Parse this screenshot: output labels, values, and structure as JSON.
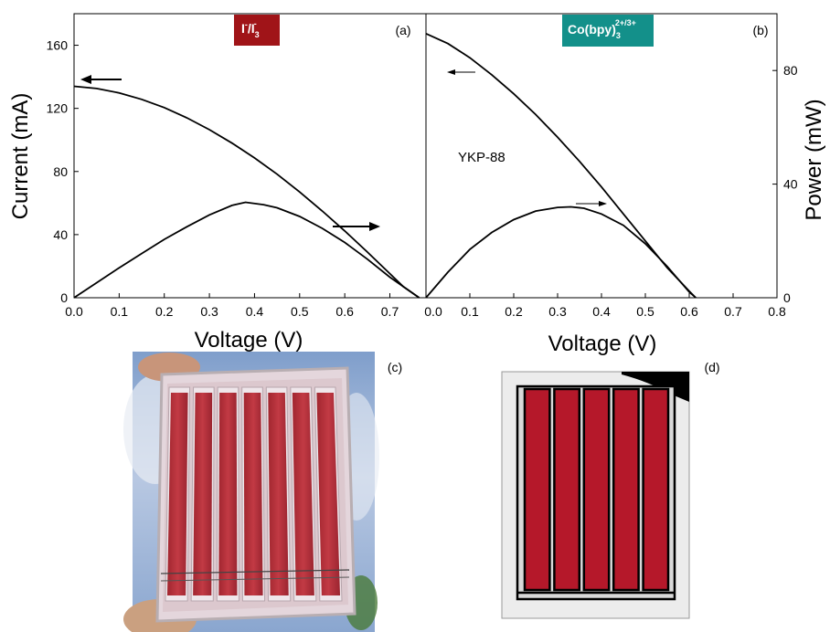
{
  "chart_data": [
    {
      "type": "line",
      "panel_label": "(a)",
      "badge": {
        "main": "I",
        "sup1": "-",
        "mid": "/I",
        "sub": "3",
        "sup2": "-",
        "color": "#a01418"
      },
      "xlabel": "Voltage (V)",
      "ylabel": "Current (mA)",
      "xlim": [
        0.0,
        0.78
      ],
      "ylim": [
        0,
        180
      ],
      "x_ticks": [
        "0.0",
        "0.1",
        "0.2",
        "0.3",
        "0.4",
        "0.5",
        "0.6",
        "0.7"
      ],
      "y_ticks": [
        "0",
        "40",
        "80",
        "120",
        "160"
      ],
      "arrows": [
        "left",
        "right"
      ],
      "series": [
        {
          "axis": "left",
          "x": [
            0.0,
            0.05,
            0.1,
            0.15,
            0.2,
            0.25,
            0.3,
            0.35,
            0.4,
            0.45,
            0.5,
            0.55,
            0.6,
            0.65,
            0.7,
            0.73,
            0.765
          ],
          "values": [
            134,
            132.6,
            129.8,
            125.7,
            120.5,
            114,
            106.5,
            98,
            88.6,
            78.3,
            67,
            55,
            42.3,
            29,
            15.3,
            7,
            0
          ]
        },
        {
          "axis": "left",
          "x": [
            0.0,
            0.05,
            0.1,
            0.15,
            0.2,
            0.25,
            0.3,
            0.35,
            0.38,
            0.42,
            0.45,
            0.5,
            0.55,
            0.6,
            0.65,
            0.7,
            0.765
          ],
          "values": [
            0,
            9.5,
            19,
            28,
            37,
            45,
            52.5,
            58.5,
            60.5,
            59,
            57,
            51.5,
            44,
            35,
            24.5,
            13,
            0
          ]
        }
      ]
    },
    {
      "type": "line",
      "panel_label": "(b)",
      "badge": {
        "main": "Co(bpy)",
        "sub": "3",
        "sup": "2+/3+",
        "color": "#13908a"
      },
      "xlabel": "Voltage (V)",
      "ylabel": "Power (mW)",
      "xlim": [
        0.0,
        0.8
      ],
      "ylim": [
        0,
        100
      ],
      "x_ticks": [
        "0.0",
        "0.1",
        "0.2",
        "0.3",
        "0.4",
        "0.5",
        "0.6",
        "0.7",
        "0.8"
      ],
      "y_ticks": [
        "0",
        "40",
        "80"
      ],
      "annotation": "YKP-88",
      "arrows": [
        "left",
        "right"
      ],
      "series": [
        {
          "axis": "right",
          "x": [
            0.0,
            0.05,
            0.1,
            0.15,
            0.2,
            0.25,
            0.3,
            0.35,
            0.4,
            0.45,
            0.5,
            0.55,
            0.6,
            0.615
          ],
          "values": [
            93,
            89.5,
            84.5,
            78.5,
            71.8,
            64.5,
            56.5,
            48,
            39,
            29.5,
            20,
            10.5,
            2.3,
            0
          ]
        },
        {
          "axis": "right",
          "x": [
            0.0,
            0.05,
            0.1,
            0.15,
            0.2,
            0.25,
            0.3,
            0.33,
            0.36,
            0.4,
            0.45,
            0.5,
            0.55,
            0.6,
            0.615
          ],
          "values": [
            0,
            9,
            17,
            23,
            27.5,
            30.5,
            31.8,
            32,
            31.5,
            29.5,
            25.5,
            19,
            11,
            2,
            0
          ]
        }
      ]
    }
  ],
  "photos": [
    {
      "label": "(c)",
      "strips": 7
    },
    {
      "label": "(d)",
      "strips": 5
    }
  ]
}
